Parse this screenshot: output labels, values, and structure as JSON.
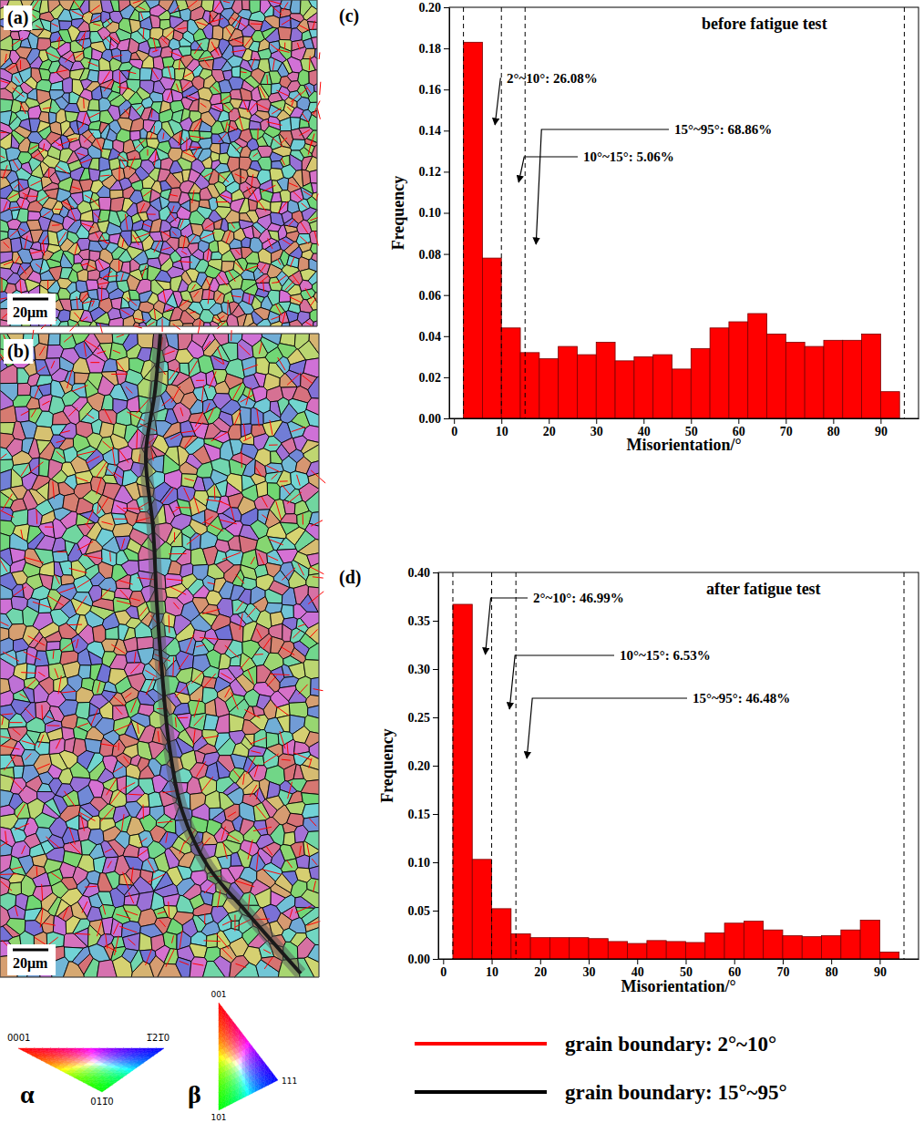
{
  "maps": [
    {
      "label": "(a)",
      "scale_bar": "20μm"
    },
    {
      "label": "(b)",
      "scale_bar": "20μm"
    }
  ],
  "chart_data": [
    {
      "type": "histogram",
      "panel_label": "(c)",
      "title": "before fatigue test",
      "x_label": "Misorientation/°",
      "y_label": "Frequency",
      "color": "#ff0000",
      "bins": [
        2,
        6,
        10,
        14,
        18,
        22,
        26,
        30,
        34,
        38,
        42,
        46,
        50,
        54,
        58,
        62,
        66,
        70,
        74,
        78,
        82,
        86,
        90,
        94
      ],
      "values": [
        0.183,
        0.078,
        0.044,
        0.032,
        0.029,
        0.035,
        0.031,
        0.037,
        0.028,
        0.03,
        0.031,
        0.024,
        0.034,
        0.044,
        0.047,
        0.051,
        0.041,
        0.037,
        0.035,
        0.038,
        0.038,
        0.041,
        0.013
      ],
      "xlim": [
        -1,
        98
      ],
      "xticks": [
        0,
        10,
        20,
        30,
        40,
        50,
        60,
        70,
        80,
        90
      ],
      "ylim": [
        0,
        0.2
      ],
      "yticks": [
        {
          "value": 0,
          "label": "0.00"
        },
        {
          "value": 0.02,
          "label": "0.02"
        },
        {
          "value": 0.04,
          "label": "0.04"
        },
        {
          "value": 0.06,
          "label": "0.06"
        },
        {
          "value": 0.08,
          "label": "0.08"
        },
        {
          "value": 0.1,
          "label": "0.10"
        },
        {
          "value": 0.12,
          "label": "0.12"
        },
        {
          "value": 0.14,
          "label": "0.14"
        },
        {
          "value": 0.16,
          "label": "0.16"
        },
        {
          "value": 0.18,
          "label": "0.18"
        },
        {
          "value": 0.2,
          "label": "0.20"
        }
      ],
      "reference_lines": [
        2,
        10,
        15,
        95
      ],
      "annotations": [
        "2°~10°: 26.08%",
        "10°~15°: 5.06%",
        "15°~95°: 68.86%"
      ]
    },
    {
      "type": "histogram",
      "panel_label": "(d)",
      "title": "after fatigue test",
      "x_label": "Misorientation/°",
      "y_label": "Frequency",
      "color": "#ff0000",
      "bins": [
        2,
        6,
        10,
        14,
        18,
        22,
        26,
        30,
        34,
        38,
        42,
        46,
        50,
        54,
        58,
        62,
        66,
        70,
        74,
        78,
        82,
        86,
        90,
        94
      ],
      "values": [
        0.367,
        0.103,
        0.052,
        0.026,
        0.022,
        0.022,
        0.022,
        0.021,
        0.018,
        0.016,
        0.019,
        0.018,
        0.017,
        0.027,
        0.037,
        0.039,
        0.03,
        0.024,
        0.023,
        0.024,
        0.03,
        0.04,
        0.007
      ],
      "xlim": [
        -1,
        98
      ],
      "xticks": [
        0,
        10,
        20,
        30,
        40,
        50,
        60,
        70,
        80,
        90
      ],
      "ylim": [
        0,
        0.4
      ],
      "yticks": [
        {
          "value": 0,
          "label": "0.00"
        },
        {
          "value": 0.05,
          "label": "0.05"
        },
        {
          "value": 0.1,
          "label": "0.10"
        },
        {
          "value": 0.15,
          "label": "0.15"
        },
        {
          "value": 0.2,
          "label": "0.20"
        },
        {
          "value": 0.25,
          "label": "0.25"
        },
        {
          "value": 0.3,
          "label": "0.30"
        },
        {
          "value": 0.35,
          "label": "0.35"
        },
        {
          "value": 0.4,
          "label": "0.40"
        }
      ],
      "reference_lines": [
        2,
        10,
        15,
        95
      ],
      "annotations": [
        "2°~10°: 46.99%",
        "10°~15°: 6.53%",
        "15°~95°: 46.48%"
      ]
    }
  ],
  "legend": {
    "alpha_label": "α",
    "alpha_vertices": [
      "0001",
      "1̅21̅0",
      "011̅0"
    ],
    "beta_label": "β",
    "beta_vertices": [
      "001",
      "101",
      "111"
    ],
    "entries": [
      {
        "name": "grain boundary: 2°~10°",
        "color": "#ff0000"
      },
      {
        "name": "grain boundary: 15°~95°",
        "color": "#000000"
      }
    ]
  }
}
